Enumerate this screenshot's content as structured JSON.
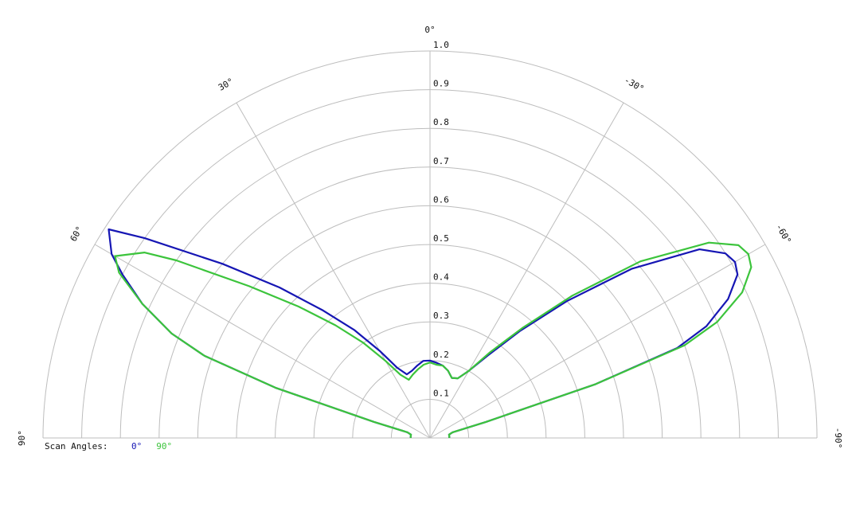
{
  "chart_data": {
    "type": "polar",
    "rlim": [
      0,
      1
    ],
    "rticks": [
      0.1,
      0.2,
      0.3,
      0.4,
      0.5,
      0.6,
      0.7,
      0.8,
      0.9,
      {
        "value": 1,
        "label": "1.0"
      }
    ],
    "angle_ticks": [
      {
        "value": 0,
        "label": "0°"
      },
      {
        "value": 30,
        "label": "30°"
      },
      {
        "value": 60,
        "label": "60°"
      },
      {
        "value": 90,
        "label": "90°"
      },
      {
        "value": -30,
        "label": "-30°"
      },
      {
        "value": -60,
        "label": "-60°"
      },
      {
        "value": -90,
        "label": "-90°"
      }
    ],
    "legend_title": "Scan Angles:",
    "theta": [
      -90,
      -85,
      -80,
      -76,
      -74,
      -72,
      -70,
      -68,
      -65,
      -62,
      -60,
      -58,
      -55,
      -50,
      -45,
      -40,
      -35,
      -30,
      -25,
      -20,
      -15,
      -10,
      -5,
      0,
      5,
      10,
      15,
      20,
      25,
      30,
      35,
      40,
      45,
      50,
      55,
      57,
      60,
      62,
      65,
      68,
      70,
      72,
      74,
      76,
      80,
      85,
      90
    ],
    "series": [
      {
        "name": "0°",
        "color": "#1616b4",
        "values": [
          0.05,
          0.05,
          0.05,
          0.06,
          0.15,
          0.45,
          0.68,
          0.77,
          0.85,
          0.9,
          0.91,
          0.9,
          0.85,
          0.68,
          0.5,
          0.36,
          0.26,
          0.2,
          0.17,
          0.165,
          0.18,
          0.19,
          0.195,
          0.2,
          0.2,
          0.19,
          0.18,
          0.175,
          0.2,
          0.26,
          0.34,
          0.43,
          0.55,
          0.7,
          0.9,
          0.99,
          0.95,
          0.9,
          0.82,
          0.72,
          0.62,
          0.42,
          0.15,
          0.06,
          0.05,
          0.05,
          0.05
        ]
      },
      {
        "name": "90°",
        "color": "#3cc43c",
        "values": [
          0.05,
          0.05,
          0.05,
          0.06,
          0.15,
          0.45,
          0.7,
          0.8,
          0.89,
          0.94,
          0.95,
          0.94,
          0.88,
          0.71,
          0.52,
          0.37,
          0.27,
          0.2,
          0.17,
          0.165,
          0.18,
          0.19,
          0.19,
          0.195,
          0.19,
          0.18,
          0.17,
          0.16,
          0.18,
          0.23,
          0.3,
          0.38,
          0.48,
          0.61,
          0.8,
          0.88,
          0.94,
          0.91,
          0.82,
          0.72,
          0.62,
          0.42,
          0.15,
          0.06,
          0.05,
          0.05,
          0.05
        ]
      }
    ]
  }
}
